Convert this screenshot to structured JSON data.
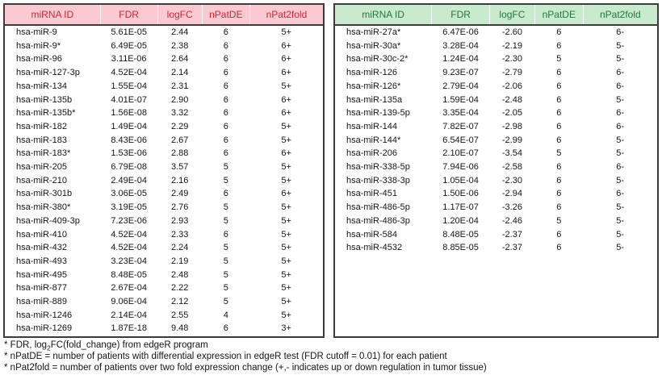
{
  "colors": {
    "up_header_bg": "#fac9d1",
    "up_header_text": "#c52a35",
    "down_header_bg": "#c9eacc",
    "down_header_text": "#1f7a3d",
    "table_border": "#3b3b3b",
    "body_text": "#141414"
  },
  "columns": [
    "miRNA ID",
    "FDR",
    "logFC",
    "nPatDE",
    "nPat2fold"
  ],
  "up_table": {
    "rows": [
      [
        "hsa-miR-9",
        "5.61E-05",
        "2.44",
        "6",
        "5+"
      ],
      [
        "hsa-miR-9*",
        "6.49E-05",
        "2.38",
        "6",
        "6+"
      ],
      [
        "hsa-miR-96",
        "3.11E-06",
        "2.64",
        "6",
        "6+"
      ],
      [
        "hsa-miR-127-3p",
        "4.52E-04",
        "2.14",
        "6",
        "6+"
      ],
      [
        "hsa-miR-134",
        "1.55E-04",
        "2.31",
        "6",
        "5+"
      ],
      [
        "hsa-miR-135b",
        "4.01E-07",
        "2.90",
        "6",
        "6+"
      ],
      [
        "hsa-miR-135b*",
        "1.56E-08",
        "3.32",
        "6",
        "6+"
      ],
      [
        "hsa-miR-182",
        "1.49E-04",
        "2.29",
        "6",
        "5+"
      ],
      [
        "hsa-miR-183",
        "8.43E-06",
        "2.67",
        "6",
        "5+"
      ],
      [
        "hsa-miR-183*",
        "1.53E-06",
        "2.88",
        "6",
        "6+"
      ],
      [
        "hsa-miR-205",
        "6.79E-08",
        "3.57",
        "5",
        "5+"
      ],
      [
        "hsa-miR-210",
        "2.49E-04",
        "2.16",
        "5",
        "5+"
      ],
      [
        "hsa-miR-301b",
        "3.06E-05",
        "2.49",
        "6",
        "6+"
      ],
      [
        "hsa-miR-380*",
        "3.19E-05",
        "2.76",
        "5",
        "5+"
      ],
      [
        "hsa-miR-409-3p",
        "7.23E-06",
        "2.93",
        "5",
        "5+"
      ],
      [
        "hsa-miR-410",
        "4.52E-04",
        "2.33",
        "6",
        "5+"
      ],
      [
        "hsa-miR-432",
        "4.52E-04",
        "2.24",
        "5",
        "5+"
      ],
      [
        "hsa-miR-493",
        "3.23E-04",
        "2.19",
        "5",
        "5+"
      ],
      [
        "hsa-miR-495",
        "8.48E-05",
        "2.48",
        "5",
        "5+"
      ],
      [
        "hsa-miR-877",
        "2.67E-04",
        "2.22",
        "5",
        "5+"
      ],
      [
        "hsa-miR-889",
        "9.06E-04",
        "2.12",
        "5",
        "5+"
      ],
      [
        "hsa-miR-1246",
        "2.14E-04",
        "2.55",
        "4",
        "5+"
      ],
      [
        "hsa-miR-1269",
        "1.87E-18",
        "9.48",
        "6",
        "3+"
      ]
    ]
  },
  "down_table": {
    "rows": [
      [
        "hsa-miR-27a*",
        "6.47E-06",
        "-2.60",
        "6",
        "6-"
      ],
      [
        "hsa-miR-30a*",
        "3.28E-04",
        "-2.19",
        "6",
        "5-"
      ],
      [
        "hsa-miR-30c-2*",
        "1.24E-04",
        "-2.30",
        "5",
        "5-"
      ],
      [
        "hsa-miR-126",
        "9.23E-07",
        "-2.79",
        "6",
        "6-"
      ],
      [
        "hsa-miR-126*",
        "2.79E-04",
        "-2.06",
        "6",
        "6-"
      ],
      [
        "hsa-miR-135a",
        "1.59E-04",
        "-2.48",
        "6",
        "5-"
      ],
      [
        "hsa-miR-139-5p",
        "3.35E-04",
        "-2.05",
        "6",
        "6-"
      ],
      [
        "hsa-miR-144",
        "7.82E-07",
        "-2.98",
        "6",
        "6-"
      ],
      [
        "hsa-miR-144*",
        "6.54E-07",
        "-2.99",
        "6",
        "5-"
      ],
      [
        "hsa-miR-206",
        "2.10E-07",
        "-3.54",
        "5",
        "5-"
      ],
      [
        "hsa-miR-338-5p",
        "7.94E-06",
        "-2.58",
        "6",
        "6-"
      ],
      [
        "hsa-miR-338-3p",
        "1.05E-04",
        "-2.30",
        "6",
        "5-"
      ],
      [
        "hsa-miR-451",
        "1.50E-06",
        "-2.94",
        "6",
        "6-"
      ],
      [
        "hsa-miR-486-5p",
        "1.17E-07",
        "-3.26",
        "6",
        "5-"
      ],
      [
        "hsa-miR-486-3p",
        "1.20E-04",
        "-2.46",
        "5",
        "5-"
      ],
      [
        "hsa-miR-584",
        "8.48E-05",
        "-2.37",
        "6",
        "5-"
      ],
      [
        "hsa-miR-4532",
        "8.85E-05",
        "-2.37",
        "6",
        "5-"
      ]
    ]
  },
  "footnotes": {
    "fdr_pre": "* FDR, log",
    "fdr_sub": "2",
    "fdr_post": "FC(fold_change) from edgeR program",
    "npatde": "* nPatDE = number of patients with differential expression in edgeR test (FDR cutoff = 0.01) for each patient",
    "npat2fold": "* nPat2fold = number of patients over two fold expression change (+,- indicates up or down regulation in tumor tissue)"
  }
}
